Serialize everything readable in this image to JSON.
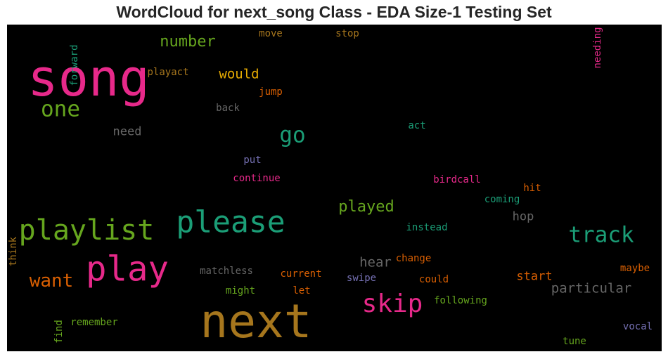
{
  "chart_data": {
    "type": "wordcloud",
    "title": "WordCloud for next_song Class - EDA Size-1 Testing Set",
    "background": "#000000",
    "colormap": "Dark2",
    "words": [
      {
        "text": "song",
        "weight": 1.0,
        "color": "#e7298a"
      },
      {
        "text": "next",
        "weight": 0.92,
        "color": "#a6761d"
      },
      {
        "text": "play",
        "weight": 0.68,
        "color": "#e7298a"
      },
      {
        "text": "please",
        "weight": 0.6,
        "color": "#1b9e77"
      },
      {
        "text": "playlist",
        "weight": 0.56,
        "color": "#66a61e"
      },
      {
        "text": "skip",
        "weight": 0.5,
        "color": "#e7298a"
      },
      {
        "text": "track",
        "weight": 0.43,
        "color": "#1b9e77"
      },
      {
        "text": "one",
        "weight": 0.43,
        "color": "#66a61e"
      },
      {
        "text": "go",
        "weight": 0.43,
        "color": "#1b9e77"
      },
      {
        "text": "want",
        "weight": 0.36,
        "color": "#d95f02"
      },
      {
        "text": "number",
        "weight": 0.31,
        "color": "#66a61e"
      },
      {
        "text": "played",
        "weight": 0.31,
        "color": "#66a61e"
      },
      {
        "text": "would",
        "weight": 0.26,
        "color": "#e6ab02"
      },
      {
        "text": "hear",
        "weight": 0.26,
        "color": "#666666"
      },
      {
        "text": "particular",
        "weight": 0.26,
        "color": "#666666"
      },
      {
        "text": "need",
        "weight": 0.24,
        "color": "#666666"
      },
      {
        "text": "hop",
        "weight": 0.24,
        "color": "#666666"
      },
      {
        "text": "start",
        "weight": 0.24,
        "color": "#d95f02"
      },
      {
        "text": "forward",
        "weight": 0.19,
        "color": "#1b9e77",
        "vertical": true
      },
      {
        "text": "needing",
        "weight": 0.19,
        "color": "#e7298a",
        "vertical": true
      },
      {
        "text": "think",
        "weight": 0.19,
        "color": "#a6761d",
        "vertical": true
      },
      {
        "text": "find",
        "weight": 0.19,
        "color": "#66a61e",
        "vertical": true
      },
      {
        "text": "move",
        "weight": 0.19,
        "color": "#a6761d"
      },
      {
        "text": "stop",
        "weight": 0.19,
        "color": "#a6761d"
      },
      {
        "text": "playact",
        "weight": 0.19,
        "color": "#a6761d"
      },
      {
        "text": "jump",
        "weight": 0.19,
        "color": "#d95f02"
      },
      {
        "text": "back",
        "weight": 0.19,
        "color": "#666666"
      },
      {
        "text": "act",
        "weight": 0.19,
        "color": "#1b9e77"
      },
      {
        "text": "put",
        "weight": 0.19,
        "color": "#7570b3"
      },
      {
        "text": "continue",
        "weight": 0.19,
        "color": "#e7298a"
      },
      {
        "text": "birdcall",
        "weight": 0.19,
        "color": "#e7298a"
      },
      {
        "text": "hit",
        "weight": 0.19,
        "color": "#d95f02"
      },
      {
        "text": "coming",
        "weight": 0.19,
        "color": "#1b9e77"
      },
      {
        "text": "instead",
        "weight": 0.19,
        "color": "#1b9e77"
      },
      {
        "text": "matchless",
        "weight": 0.19,
        "color": "#666666"
      },
      {
        "text": "change",
        "weight": 0.19,
        "color": "#d95f02"
      },
      {
        "text": "current",
        "weight": 0.19,
        "color": "#d95f02"
      },
      {
        "text": "swipe",
        "weight": 0.19,
        "color": "#7570b3"
      },
      {
        "text": "could",
        "weight": 0.19,
        "color": "#d95f02"
      },
      {
        "text": "maybe",
        "weight": 0.19,
        "color": "#d95f02"
      },
      {
        "text": "might",
        "weight": 0.19,
        "color": "#66a61e"
      },
      {
        "text": "let",
        "weight": 0.19,
        "color": "#d95f02"
      },
      {
        "text": "following",
        "weight": 0.19,
        "color": "#66a61e"
      },
      {
        "text": "remember",
        "weight": 0.19,
        "color": "#66a61e"
      },
      {
        "text": "vocal",
        "weight": 0.19,
        "color": "#7570b3"
      },
      {
        "text": "tune",
        "weight": 0.19,
        "color": "#66a61e"
      }
    ]
  }
}
